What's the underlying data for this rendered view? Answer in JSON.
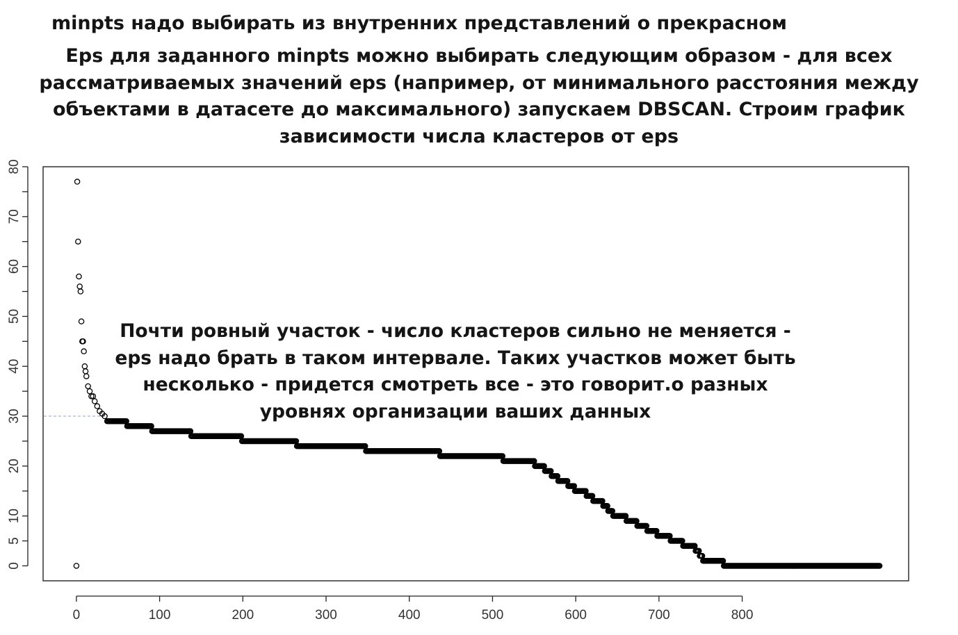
{
  "heading": {
    "line1": "minpts надо выбирать из внутренних представлений о прекрасном",
    "paragraph": [
      "Eps для заданного minpts можно выбирать следующим образом - для всех",
      "рассматриваемых значений eps (например, от минимального расстояния между",
      "объектами в датасете до максимального) запускаем DBSCAN. Строим график",
      "зависимости числа кластеров от eps"
    ]
  },
  "annotation": [
    "Почти ровный участок - число кластеров сильно не меняется -",
    "eps надо брать в таком интервале. Таких участков может быть",
    "несколько - придется смотреть все - это говорит.о разных",
    "уровнях организации ваших данных"
  ],
  "chart_data": {
    "type": "scatter",
    "title": "",
    "xlabel": "",
    "ylabel": "",
    "xlim": [
      -40,
      1000
    ],
    "ylim": [
      -3,
      80
    ],
    "x_ticks": [
      0,
      100,
      200,
      300,
      400,
      500,
      600,
      700,
      800
    ],
    "y_ticks": [
      0,
      5,
      10,
      20,
      30,
      40,
      50,
      60,
      70,
      80
    ],
    "y_minor_ticks": [
      15,
      25,
      35,
      45,
      55,
      65,
      75
    ],
    "grid": false,
    "legend": "none",
    "marker": "open-circle",
    "reference_line": {
      "y": 30,
      "from_x": -40,
      "to_x": 38,
      "style": "dashed",
      "color": "#9fb6d8"
    },
    "points": [
      {
        "x": 1,
        "y": 77
      },
      {
        "x": 2,
        "y": 65
      },
      {
        "x": 3,
        "y": 58
      },
      {
        "x": 4,
        "y": 56
      },
      {
        "x": 5,
        "y": 55
      },
      {
        "x": 6,
        "y": 49
      },
      {
        "x": 7,
        "y": 45
      },
      {
        "x": 8,
        "y": 45
      },
      {
        "x": 9,
        "y": 43
      },
      {
        "x": 10,
        "y": 40
      },
      {
        "x": 11,
        "y": 39
      },
      {
        "x": 12,
        "y": 38
      },
      {
        "x": 14,
        "y": 36
      },
      {
        "x": 16,
        "y": 35
      },
      {
        "x": 18,
        "y": 34
      },
      {
        "x": 20,
        "y": 34
      },
      {
        "x": 22,
        "y": 33
      },
      {
        "x": 25,
        "y": 32
      },
      {
        "x": 28,
        "y": 31
      },
      {
        "x": 31,
        "y": 30.5
      },
      {
        "x": 34,
        "y": 30
      },
      {
        "x": 0,
        "y": 0
      }
    ],
    "steps": [
      {
        "y": 29,
        "from": 37,
        "to": 60
      },
      {
        "y": 28,
        "from": 61,
        "to": 90
      },
      {
        "y": 27,
        "from": 91,
        "to": 137
      },
      {
        "y": 26,
        "from": 138,
        "to": 198
      },
      {
        "y": 25,
        "from": 199,
        "to": 264
      },
      {
        "y": 24,
        "from": 265,
        "to": 347
      },
      {
        "y": 23,
        "from": 348,
        "to": 436
      },
      {
        "y": 22,
        "from": 437,
        "to": 512
      },
      {
        "y": 21,
        "from": 513,
        "to": 550
      },
      {
        "y": 20,
        "from": 551,
        "to": 562
      },
      {
        "y": 19,
        "from": 563,
        "to": 570
      },
      {
        "y": 18,
        "from": 571,
        "to": 578
      },
      {
        "y": 17,
        "from": 579,
        "to": 590
      },
      {
        "y": 16,
        "from": 591,
        "to": 598
      },
      {
        "y": 15,
        "from": 599,
        "to": 612
      },
      {
        "y": 14,
        "from": 613,
        "to": 620
      },
      {
        "y": 13,
        "from": 621,
        "to": 632
      },
      {
        "y": 12,
        "from": 633,
        "to": 638
      },
      {
        "y": 11,
        "from": 639,
        "to": 644
      },
      {
        "y": 10,
        "from": 645,
        "to": 660
      },
      {
        "y": 9,
        "from": 661,
        "to": 673
      },
      {
        "y": 8,
        "from": 674,
        "to": 685
      },
      {
        "y": 7,
        "from": 686,
        "to": 697
      },
      {
        "y": 6,
        "from": 698,
        "to": 713
      },
      {
        "y": 5,
        "from": 714,
        "to": 728
      },
      {
        "y": 4,
        "from": 729,
        "to": 743
      },
      {
        "y": 3,
        "from": 744,
        "to": 748
      },
      {
        "y": 2,
        "from": 749,
        "to": 752
      },
      {
        "y": 1,
        "from": 753,
        "to": 777
      },
      {
        "y": 0,
        "from": 778,
        "to": 965
      }
    ],
    "colors": {
      "marker": "#000000",
      "axis": "#222222",
      "text": "#333333"
    }
  }
}
